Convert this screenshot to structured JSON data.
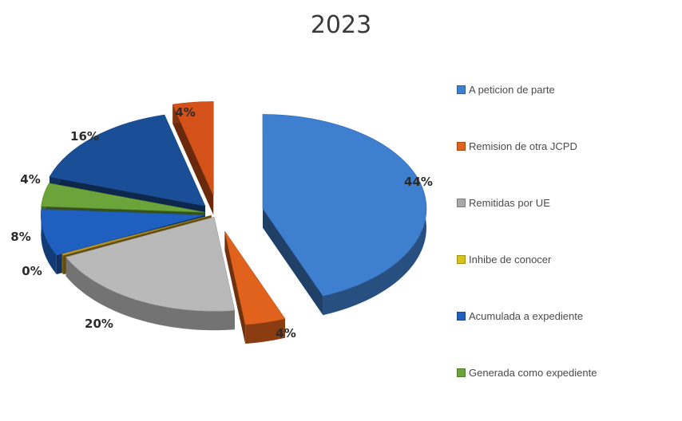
{
  "chart_data": {
    "type": "pie",
    "title": "2023",
    "slices": [
      {
        "label": "A petición de parte",
        "value": 44,
        "display": "44%",
        "color": "#3f7fcf"
      },
      {
        "label": "Remisión de otra JCPD",
        "value": 4,
        "display": "4%",
        "color": "#e0621c"
      },
      {
        "label": "Remitidas por UE",
        "value": 20,
        "display": "20%",
        "color": "#b9b9b9"
      },
      {
        "label": "Inhibe de conocer",
        "value": 0,
        "display": "0%",
        "color": "#c09a1c"
      },
      {
        "label": "Acumulada a expediente",
        "value": 8,
        "display": "8%",
        "color": "#1f5fbf"
      },
      {
        "label": "Generada como expediente",
        "value": 4,
        "display": "4%",
        "color": "#6aa43a"
      },
      {
        "label": "",
        "value": 16,
        "display": "16%",
        "color": "#1a4e97"
      },
      {
        "label": "",
        "value": 4,
        "display": "4%",
        "color": "#d4521a"
      }
    ],
    "legend": [
      {
        "label": "A peticion de parte",
        "color": "#3f7fcf"
      },
      {
        "label": "Remision de otra JCPD",
        "color": "#e0621c"
      },
      {
        "label": "Remitidas por UE",
        "color": "#a9a9a9"
      },
      {
        "label": "Inhibe de conocer",
        "color": "#d9c11c"
      },
      {
        "label": "Acumulada a expediente",
        "color": "#1f5fbf"
      },
      {
        "label": "Generada como expediente",
        "color": "#6aa43a"
      }
    ],
    "legend_position": "right",
    "exploded": true,
    "three_d": true
  }
}
